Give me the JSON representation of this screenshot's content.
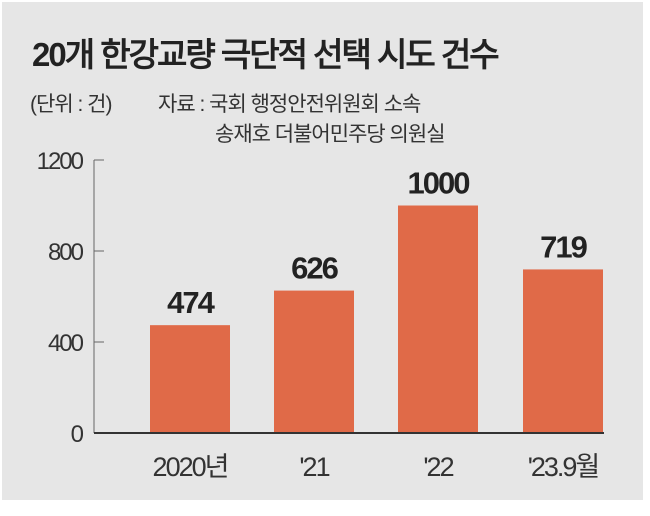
{
  "chart_data": {
    "type": "bar",
    "title": "20개 한강교량 극단적 선택 시도 건수",
    "unit": "(단위 : 건)",
    "source_line1": "자료 : 국회 행정안전위원회 소속",
    "source_line2": "송재호 더불어민주당 의원실",
    "categories": [
      "2020년",
      "'21",
      "'22",
      "'23.9월"
    ],
    "values": [
      474,
      626,
      1000,
      719
    ],
    "value_labels": [
      "474",
      "626",
      "1000",
      "719"
    ],
    "yticks": [
      0,
      400,
      800,
      1200
    ],
    "ytick_labels": [
      "0",
      "400",
      "800",
      "1200"
    ],
    "ylim": [
      0,
      1200
    ],
    "xlabel": "",
    "ylabel": "",
    "bar_color": "#e06a48",
    "grid": false
  }
}
